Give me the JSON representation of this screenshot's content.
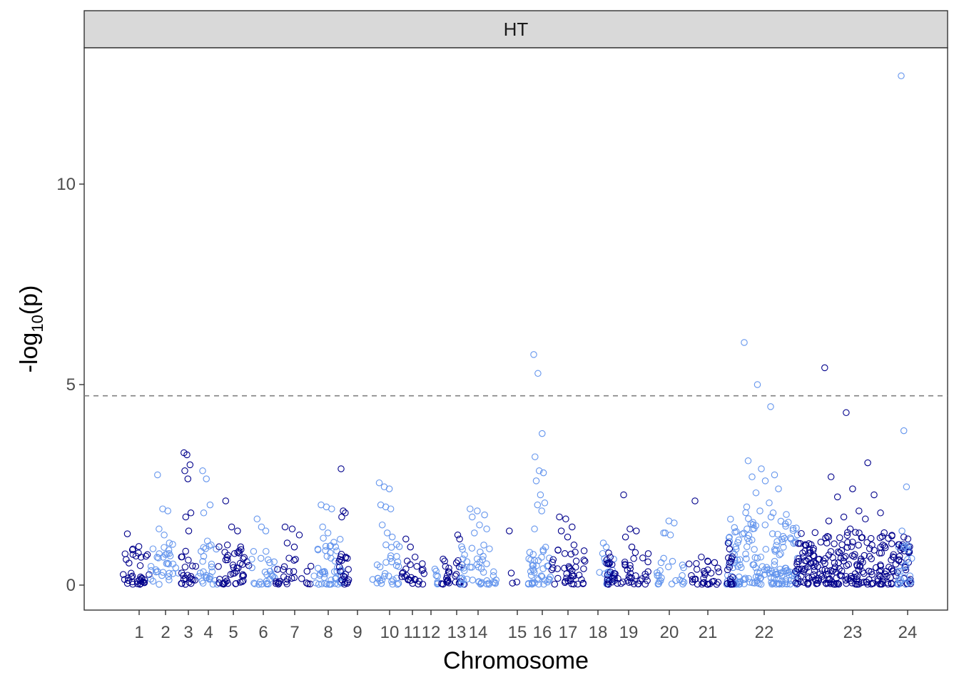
{
  "chart_data": {
    "type": "scatter",
    "panel_title": "HT",
    "xlabel": "Chromosome",
    "ylabel": "-log10(p)",
    "ylim": [
      -0.6,
      13.7
    ],
    "y_ticks": [
      0,
      5,
      10
    ],
    "threshold_line": {
      "y": 4.72,
      "style": "dashed",
      "color": "#808080"
    },
    "colors": {
      "odd": "#00008b",
      "even": "#6495ed"
    },
    "grid": false,
    "legend": "none",
    "chromosomes": [
      {
        "label": "1",
        "tick": 195,
        "start": 168,
        "end": 210,
        "color": "odd",
        "tops": [
          1.28,
          0.9,
          0.8,
          0.55
        ],
        "max": 0.95,
        "n": 34
      },
      {
        "label": "2",
        "tick": 232,
        "start": 211,
        "end": 250,
        "color": "even",
        "tops": [
          2.75,
          1.9,
          1.85,
          1.4,
          1.25,
          1.05
        ],
        "max": 1.0,
        "n": 32
      },
      {
        "label": "3",
        "tick": 264,
        "start": 252,
        "end": 275,
        "color": "odd",
        "tops": [
          3.3,
          3.25,
          3.0,
          2.85,
          2.65,
          1.8,
          1.7,
          1.35
        ],
        "max": 0.85,
        "n": 22
      },
      {
        "label": "4",
        "tick": 292,
        "start": 277,
        "end": 305,
        "color": "even",
        "tops": [
          2.85,
          2.65,
          2.0,
          1.8,
          1.1,
          1.0
        ],
        "max": 1.0,
        "n": 24
      },
      {
        "label": "5",
        "tick": 327,
        "start": 305,
        "end": 350,
        "color": "odd",
        "tops": [
          2.1,
          1.45,
          1.35,
          1.0
        ],
        "max": 0.95,
        "n": 44
      },
      {
        "label": "6",
        "tick": 369,
        "start": 352,
        "end": 385,
        "color": "even",
        "tops": [
          1.65,
          1.45,
          1.35
        ],
        "max": 0.85,
        "n": 26
      },
      {
        "label": "7",
        "tick": 413,
        "start": 386,
        "end": 440,
        "color": "odd",
        "tops": [
          1.45,
          1.4,
          1.25,
          1.05,
          0.95
        ],
        "max": 0.7,
        "n": 26
      },
      {
        "label": "8",
        "tick": 460,
        "start": 440,
        "end": 480,
        "color": "even",
        "tops": [
          2.0,
          1.95,
          1.9,
          1.45,
          1.3
        ],
        "max": 1.2,
        "n": 48
      },
      {
        "label": "9",
        "tick": 501,
        "start": 474,
        "end": 490,
        "color": "odd",
        "tops": [
          2.9,
          1.85,
          1.8,
          1.7
        ],
        "max": 0.9,
        "n": 20
      },
      {
        "label": "10",
        "tick": 546,
        "start": 522,
        "end": 560,
        "color": "even",
        "tops": [
          2.55,
          2.45,
          2.4,
          2.0,
          1.95,
          1.9,
          1.5,
          1.3,
          1.2
        ],
        "max": 1.0,
        "n": 30
      },
      {
        "label": "11",
        "tick": 578,
        "start": 560,
        "end": 595,
        "color": "odd",
        "tops": [
          1.15,
          0.95,
          0.7,
          0.6
        ],
        "max": 0.6,
        "n": 22
      },
      {
        "label": "12",
        "tick": 604,
        "start": 608,
        "end": 614,
        "color": "even",
        "tops": [
          0.4
        ],
        "max": 0.35,
        "n": 6
      },
      {
        "label": "13",
        "tick": 623,
        "start": 618,
        "end": 630,
        "color": "odd",
        "tops": [
          0.65,
          0.6
        ],
        "max": 0.55,
        "n": 14
      },
      {
        "label": "13",
        "tick": 640,
        "start": 638,
        "end": 652,
        "color": "odd",
        "tops": [
          1.25,
          1.15
        ],
        "max": 0.8,
        "n": 12
      },
      {
        "label": "14",
        "tick": 670,
        "start": 645,
        "end": 700,
        "color": "even",
        "tops": [
          1.9,
          1.85,
          1.75,
          1.7,
          1.5,
          1.4,
          1.3
        ],
        "max": 1.1,
        "n": 46
      },
      {
        "label": "15",
        "tick": 725,
        "start": 710,
        "end": 725,
        "color": "odd",
        "tops": [
          1.35,
          0.3
        ],
        "max": 0.3,
        "n": 2
      },
      {
        "label": "16",
        "tick": 760,
        "start": 740,
        "end": 772,
        "color": "even",
        "tops": [
          5.75,
          5.28,
          3.78,
          3.2,
          2.85,
          2.8,
          2.6,
          2.25,
          2.05,
          2.0,
          1.85,
          1.4
        ],
        "max": 1.0,
        "n": 40
      },
      {
        "label": "17",
        "tick": 796,
        "start": 772,
        "end": 820,
        "color": "odd",
        "tops": [
          1.7,
          1.65,
          1.45,
          1.35,
          1.2,
          1.0
        ],
        "max": 0.9,
        "n": 40
      },
      {
        "label": "18",
        "tick": 838,
        "start": 840,
        "end": 862,
        "color": "even",
        "tops": [
          1.05,
          0.95
        ],
        "max": 0.85,
        "n": 18
      },
      {
        "label": "18",
        "tick": 855,
        "start": 850,
        "end": 862,
        "color": "odd",
        "tops": [
          0.8,
          0.7
        ],
        "max": 0.7,
        "n": 18
      },
      {
        "label": "19",
        "tick": 881,
        "start": 862,
        "end": 910,
        "color": "odd",
        "tops": [
          2.25,
          1.4,
          1.35,
          1.2,
          0.95
        ],
        "max": 0.85,
        "n": 34
      },
      {
        "label": "20",
        "tick": 938,
        "start": 920,
        "end": 960,
        "color": "even",
        "tops": [
          1.3,
          1.6,
          1.55,
          1.3,
          1.25
        ],
        "max": 0.7,
        "n": 22
      },
      {
        "label": "21",
        "tick": 992,
        "start": 962,
        "end": 1010,
        "color": "odd",
        "tops": [
          2.1,
          0.7,
          0.6
        ],
        "max": 0.6,
        "n": 30
      },
      {
        "label": "22",
        "tick": 1071,
        "start": 1018,
        "end": 1118,
        "color": "even",
        "tops": [
          6.05,
          5.0,
          4.45,
          3.1,
          2.9,
          2.75,
          2.7,
          2.6,
          2.4,
          2.3,
          2.05,
          1.95,
          1.85,
          1.8
        ],
        "max": 1.8,
        "n": 170
      },
      {
        "label": "22",
        "tick": 1022,
        "start": 1018,
        "end": 1028,
        "color": "odd",
        "tops": [
          1.05,
          0.9
        ],
        "max": 0.7,
        "n": 16
      },
      {
        "label": "23",
        "tick": 1195,
        "start": 1115,
        "end": 1278,
        "color": "odd",
        "tops": [
          5.42,
          4.3,
          3.05,
          2.7,
          2.4,
          2.25,
          2.2,
          1.85,
          1.8,
          1.7,
          1.65,
          1.6,
          1.4
        ],
        "max": 1.3,
        "n": 260
      },
      {
        "label": "24",
        "tick": 1272,
        "start": 1258,
        "end": 1278,
        "color": "even",
        "tops": [
          12.7,
          3.85,
          2.45,
          1.35
        ],
        "max": 1.0,
        "n": 22
      }
    ],
    "x_axis_labels": [
      "1",
      "2",
      "3",
      "4",
      "5",
      "6",
      "7",
      "8",
      "9",
      "10",
      "11",
      "12",
      "13",
      "14",
      "15",
      "16",
      "17",
      "18",
      "19",
      "20",
      "21",
      "22",
      "23",
      "24"
    ],
    "x_axis_ticks": [
      195,
      232,
      264,
      292,
      327,
      369,
      413,
      460,
      501,
      546,
      578,
      604,
      640,
      670,
      725,
      760,
      796,
      838,
      881,
      938,
      992,
      1071,
      1195,
      1272
    ]
  }
}
